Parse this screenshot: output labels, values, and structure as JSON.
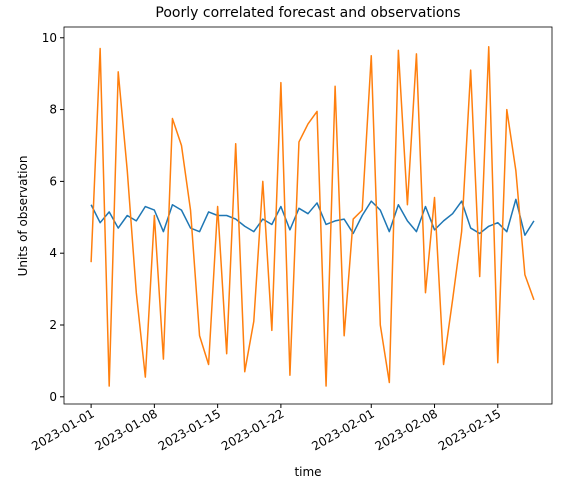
{
  "chart_data": {
    "type": "line",
    "title": "Poorly correlated forecast and observations",
    "x_label": "time",
    "y_label": "Units of observation",
    "x": [
      "2023-01-01",
      "2023-01-02",
      "2023-01-03",
      "2023-01-04",
      "2023-01-05",
      "2023-01-06",
      "2023-01-07",
      "2023-01-08",
      "2023-01-09",
      "2023-01-10",
      "2023-01-11",
      "2023-01-12",
      "2023-01-13",
      "2023-01-14",
      "2023-01-15",
      "2023-01-16",
      "2023-01-17",
      "2023-01-18",
      "2023-01-19",
      "2023-01-20",
      "2023-01-21",
      "2023-01-22",
      "2023-01-23",
      "2023-01-24",
      "2023-01-25",
      "2023-01-26",
      "2023-01-27",
      "2023-01-28",
      "2023-01-29",
      "2023-01-30",
      "2023-01-31",
      "2023-02-01",
      "2023-02-02",
      "2023-02-03",
      "2023-02-04",
      "2023-02-05",
      "2023-02-06",
      "2023-02-07",
      "2023-02-08",
      "2023-02-09",
      "2023-02-10",
      "2023-02-11",
      "2023-02-12",
      "2023-02-13",
      "2023-02-14",
      "2023-02-15",
      "2023-02-16",
      "2023-02-17",
      "2023-02-18",
      "2023-02-19"
    ],
    "series": [
      {
        "color": "#1f77b4",
        "values": [
          5.35,
          4.85,
          5.15,
          4.7,
          5.05,
          4.9,
          5.3,
          5.2,
          4.6,
          5.35,
          5.2,
          4.7,
          4.6,
          5.15,
          5.05,
          5.05,
          4.95,
          4.75,
          4.6,
          4.95,
          4.8,
          5.3,
          4.65,
          5.25,
          5.1,
          5.4,
          4.8,
          4.9,
          4.95,
          4.55,
          5.05,
          5.45,
          5.2,
          4.6,
          5.35,
          4.9,
          4.6,
          5.3,
          4.65,
          4.9,
          5.1,
          5.45,
          4.7,
          4.55,
          4.75,
          4.85,
          4.6,
          5.5,
          4.5,
          4.9
        ]
      },
      {
        "color": "#ff7f0e",
        "values": [
          3.75,
          9.7,
          0.3,
          9.05,
          6.3,
          2.9,
          0.55,
          5.05,
          1.05,
          7.75,
          7.0,
          5.2,
          1.7,
          0.9,
          5.3,
          1.2,
          7.05,
          0.7,
          2.1,
          6.0,
          1.85,
          8.75,
          0.6,
          7.1,
          7.6,
          7.95,
          0.3,
          8.65,
          1.7,
          4.95,
          5.2,
          9.5,
          2.0,
          0.4,
          9.65,
          5.35,
          9.55,
          2.9,
          5.55,
          0.9,
          2.7,
          4.6,
          9.1,
          3.35,
          9.75,
          0.95,
          8.0,
          6.3,
          3.4,
          2.7
        ]
      }
    ],
    "xlim": [
      "2022-12-29",
      "2023-02-21"
    ],
    "xticks": [
      "2023-01-01",
      "2023-01-08",
      "2023-01-15",
      "2023-01-22",
      "2023-02-01",
      "2023-02-08",
      "2023-02-15"
    ],
    "ylim": [
      -0.2,
      10.3
    ],
    "yticks": [
      0,
      2,
      4,
      6,
      8,
      10
    ],
    "grid": false
  }
}
